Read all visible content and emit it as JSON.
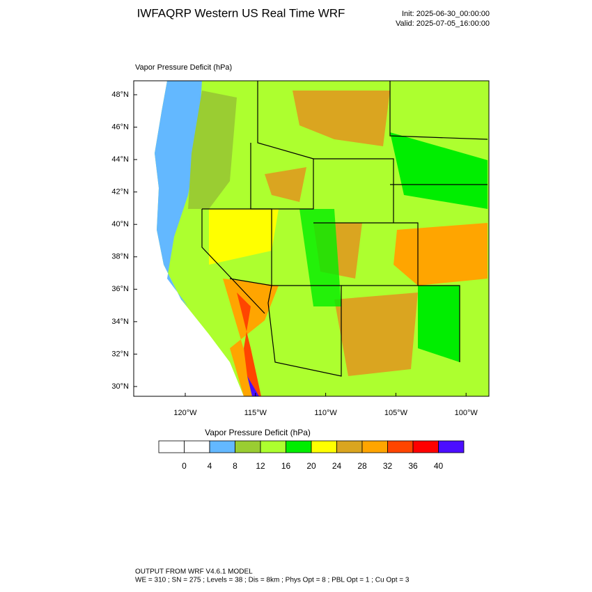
{
  "header": {
    "title": "IWFAQRP Western US Real Time WRF",
    "init": "Init: 2025-06-30_00:00:00",
    "valid": "Valid: 2025-07-05_16:00:00"
  },
  "map": {
    "field_label": "Vapor Pressure Deficit   (hPa)",
    "lat_labels": [
      "48°N",
      "46°N",
      "44°N",
      "42°N",
      "40°N",
      "38°N",
      "36°N",
      "34°N",
      "32°N",
      "30°N"
    ],
    "lon_labels": [
      "120°W",
      "115°W",
      "110°W",
      "105°W",
      "100°W"
    ]
  },
  "colorbar": {
    "title": "Vapor Pressure Deficit  (hPa)",
    "colors": [
      "#ffffff",
      "#ffffff",
      "#63b8ff",
      "#9acd32",
      "#adff2f",
      "#00ee00",
      "#ffff00",
      "#daa520",
      "#ffa500",
      "#ff4500",
      "#ff0000",
      "#4b0eff"
    ],
    "labels": [
      0,
      4,
      8,
      12,
      16,
      20,
      24,
      28,
      32,
      36,
      40
    ]
  },
  "footer": {
    "line1": "OUTPUT FROM WRF V4.6.1 MODEL",
    "line2": "WE = 310 ; SN = 275 ; Levels = 38 ; Dis = 8km ; Phys Opt = 8 ; PBL Opt = 1 ; Cu Opt = 3"
  }
}
